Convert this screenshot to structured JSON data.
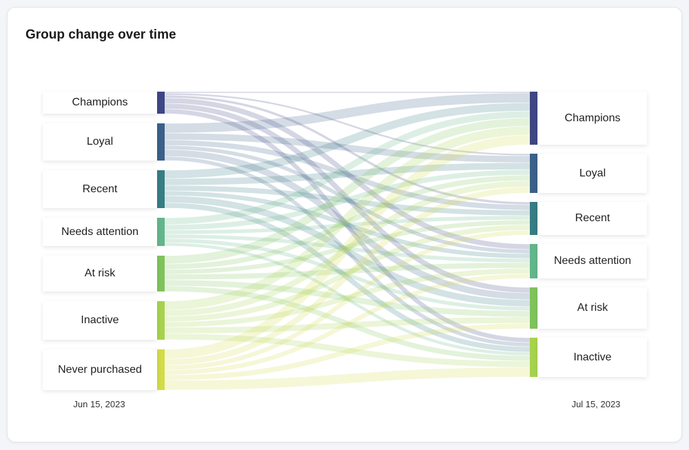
{
  "title": "Group change over time",
  "chart_data": {
    "type": "sankey",
    "title": "Group change over time",
    "source_column_label": "Jun 15, 2023",
    "target_column_label": "Jul 15, 2023",
    "source_nodes": [
      {
        "name": "Champions",
        "color": "#3e4685"
      },
      {
        "name": "Loyal",
        "color": "#3a6189"
      },
      {
        "name": "Recent",
        "color": "#367d84"
      },
      {
        "name": "Needs attention",
        "color": "#62b68a"
      },
      {
        "name": "At risk",
        "color": "#7fc35c"
      },
      {
        "name": "Inactive",
        "color": "#a6d24e"
      },
      {
        "name": "Never purchased",
        "color": "#d2dc48"
      }
    ],
    "target_nodes": [
      {
        "name": "Champions",
        "color": "#3e4685"
      },
      {
        "name": "Loyal",
        "color": "#3a6189"
      },
      {
        "name": "Recent",
        "color": "#367d84"
      },
      {
        "name": "Needs attention",
        "color": "#62b68a"
      },
      {
        "name": "At risk",
        "color": "#7fc35c"
      },
      {
        "name": "Inactive",
        "color": "#a6d24e"
      }
    ],
    "flows_estimated": [
      [
        2,
        3,
        4,
        8,
        8,
        7
      ],
      [
        14,
        10,
        8,
        6,
        10,
        6
      ],
      [
        12,
        10,
        8,
        7,
        10,
        8
      ],
      [
        10,
        8,
        6,
        6,
        6,
        5
      ],
      [
        12,
        8,
        7,
        8,
        9,
        8
      ],
      [
        13,
        9,
        8,
        8,
        9,
        9
      ],
      [
        14,
        9,
        7,
        7,
        8,
        14
      ]
    ]
  }
}
